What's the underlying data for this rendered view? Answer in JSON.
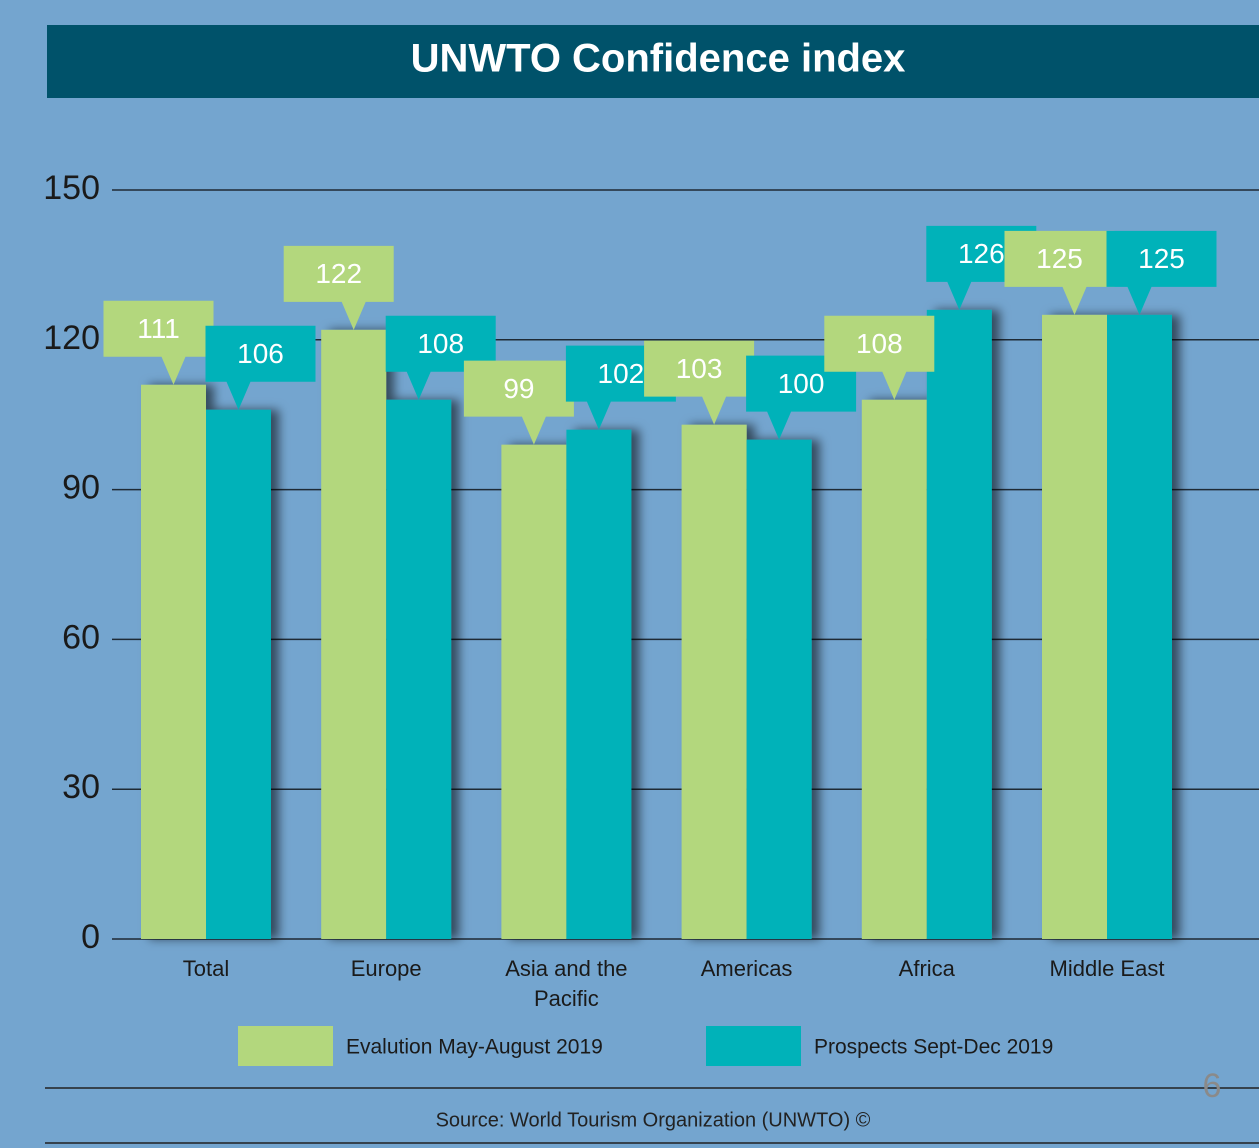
{
  "chart_data": {
    "type": "bar",
    "title": "UNWTO Confidence index",
    "categories": [
      "Total",
      "Europe",
      "Asia and the Pacific",
      "Americas",
      "Africa",
      "Middle East"
    ],
    "series": [
      {
        "name": "Evalution May-August 2019",
        "color": "#b3d77d",
        "values": [
          111,
          122,
          99,
          103,
          108,
          125
        ]
      },
      {
        "name": "Prospects Sept-Dec 2019",
        "color": "#00b2b9",
        "values": [
          106,
          108,
          102,
          100,
          126,
          125
        ]
      }
    ],
    "ylim": [
      0,
      150
    ],
    "yticks": [
      0,
      30,
      60,
      90,
      120,
      150
    ],
    "grid": true,
    "legend": "bottom",
    "source": "Source: World Tourism Organization (UNWTO) ©",
    "page_number": "6"
  }
}
